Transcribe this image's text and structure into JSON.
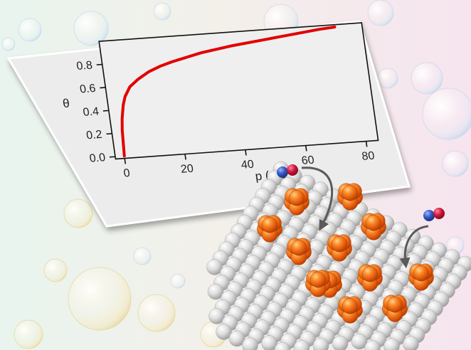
{
  "colors": {
    "background_left": "#eaf3ee",
    "background_right": "#f7e7f1",
    "card": "#ececec",
    "curve": "#e20000",
    "nanoparticle": "#f06a14",
    "substrate_atom": "#d8d8d8",
    "adsorbate_blue": "#2f56c8",
    "adsorbate_red": "#d1143a",
    "arrow": "#5a5a5a"
  },
  "chart_data": {
    "type": "line",
    "xlabel": "p (mbar)",
    "ylabel": "θ",
    "xlim": [
      -3,
      84
    ],
    "ylim": [
      -0.02,
      1.0
    ],
    "x_ticks": [
      0,
      20,
      40,
      60,
      80
    ],
    "y_ticks": [
      0.0,
      0.2,
      0.4,
      0.6,
      0.8
    ],
    "x_tick_labels": [
      "0",
      "20",
      "40",
      "60",
      "80"
    ],
    "y_tick_labels": [
      "0.0",
      "0.2",
      "0.4",
      "0.6",
      "0.8"
    ],
    "series": [
      {
        "x": [
          0,
          0.5,
          1,
          2,
          3,
          5,
          8,
          12,
          16,
          20,
          25,
          30,
          40,
          50,
          60,
          70,
          75
        ],
        "y": [
          0.0,
          0.22,
          0.32,
          0.44,
          0.51,
          0.59,
          0.65,
          0.71,
          0.75,
          0.78,
          0.81,
          0.84,
          0.88,
          0.91,
          0.94,
          0.97,
          0.98
        ]
      }
    ]
  },
  "illustration": {
    "description_items": [
      "bubble-background",
      "graph-card",
      "catalyst-surface",
      "nanoparticles",
      "adsorbate-molecules",
      "exchange-arrows"
    ]
  }
}
